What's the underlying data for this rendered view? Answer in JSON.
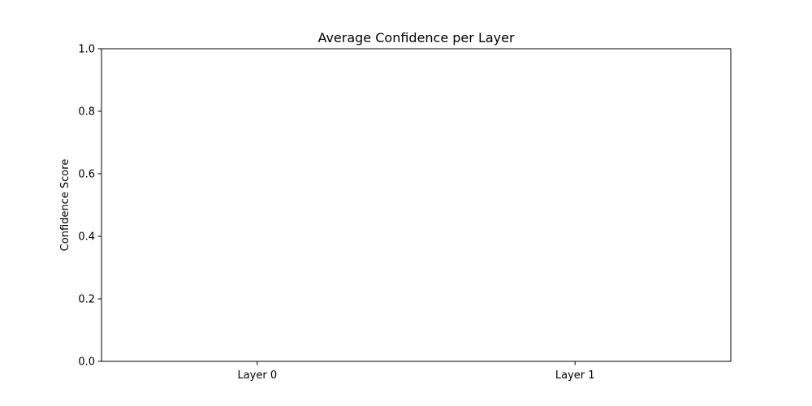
{
  "chart_data": {
    "type": "bar",
    "title": "Average Confidence per Layer",
    "xlabel": "",
    "ylabel": "Confidence Score",
    "categories": [
      "Layer 0",
      "Layer 1"
    ],
    "values": [
      0,
      0
    ],
    "ylim": [
      0,
      1.0
    ],
    "yticks": [
      "0.0",
      "0.2",
      "0.4",
      "0.6",
      "0.8",
      "1.0"
    ],
    "grid": false,
    "legend": "none"
  }
}
